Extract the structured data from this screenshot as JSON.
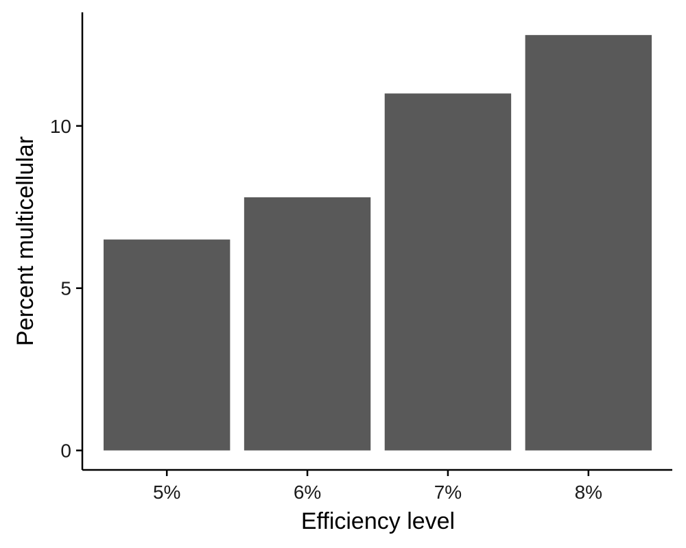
{
  "chart_data": {
    "type": "bar",
    "title": "",
    "xlabel": "Efficiency level",
    "ylabel": "Percent multicellular",
    "categories": [
      "5%",
      "6%",
      "7%",
      "8%"
    ],
    "values": [
      6.5,
      7.8,
      11.0,
      12.8
    ],
    "ylim": [
      -0.6,
      13.5
    ],
    "yticks": [
      0,
      5,
      10
    ],
    "bar_color": "#595959",
    "grid": false,
    "legend": "none"
  }
}
